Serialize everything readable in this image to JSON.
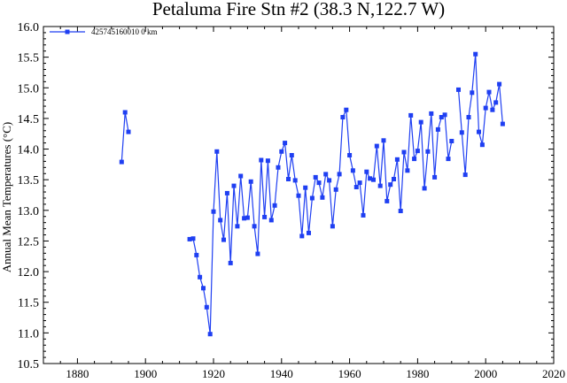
{
  "chart_data": {
    "type": "line",
    "title": "Petaluma Fire Stn #2 (38.3 N,122.7 W)",
    "xlabel": "",
    "ylabel": "Annual Mean Temperatures (°C)",
    "xlim": [
      1870,
      2020
    ],
    "ylim": [
      10.5,
      16.0
    ],
    "x_ticks": [
      "1880",
      "1900",
      "1920",
      "1940",
      "1960",
      "1980",
      "2000",
      "2020"
    ],
    "y_ticks": [
      "10.5",
      "11.0",
      "11.5",
      "12.0",
      "12.5",
      "13.0",
      "13.5",
      "14.0",
      "14.5",
      "15.0",
      "15.5",
      "16.0"
    ],
    "grid": false,
    "legend_position": "top-left",
    "series_color": "#1f3ff2",
    "series": [
      {
        "name": "425745160010  0 km",
        "segments": [
          [
            [
              1893,
              13.79
            ],
            [
              1894,
              14.6
            ],
            [
              1895,
              14.28
            ]
          ],
          [
            [
              1913,
              12.53
            ],
            [
              1914,
              12.54
            ],
            [
              1915,
              12.27
            ],
            [
              1916,
              11.91
            ],
            [
              1917,
              11.73
            ],
            [
              1918,
              11.42
            ],
            [
              1919,
              10.98
            ],
            [
              1920,
              12.98
            ],
            [
              1921,
              13.96
            ],
            [
              1922,
              12.84
            ],
            [
              1923,
              12.52
            ],
            [
              1924,
              13.28
            ],
            [
              1925,
              12.14
            ],
            [
              1926,
              13.4
            ],
            [
              1927,
              12.74
            ],
            [
              1928,
              13.56
            ],
            [
              1929,
              12.87
            ],
            [
              1930,
              12.88
            ],
            [
              1931,
              13.47
            ],
            [
              1932,
              12.74
            ],
            [
              1933,
              12.29
            ],
            [
              1934,
              13.82
            ],
            [
              1935,
              12.89
            ],
            [
              1936,
              13.81
            ],
            [
              1937,
              12.84
            ],
            [
              1938,
              13.08
            ],
            [
              1939,
              13.7
            ],
            [
              1940,
              13.96
            ],
            [
              1941,
              14.1
            ],
            [
              1942,
              13.51
            ],
            [
              1943,
              13.9
            ],
            [
              1944,
              13.49
            ],
            [
              1945,
              13.24
            ],
            [
              1946,
              12.58
            ],
            [
              1947,
              13.37
            ],
            [
              1948,
              12.63
            ],
            [
              1949,
              13.2
            ],
            [
              1950,
              13.54
            ],
            [
              1951,
              13.45
            ],
            [
              1952,
              13.21
            ],
            [
              1953,
              13.59
            ],
            [
              1954,
              13.49
            ],
            [
              1955,
              12.74
            ],
            [
              1956,
              13.34
            ],
            [
              1957,
              13.59
            ],
            [
              1958,
              14.52
            ],
            [
              1959,
              14.64
            ],
            [
              1960,
              13.9
            ],
            [
              1961,
              13.65
            ],
            [
              1962,
              13.38
            ],
            [
              1963,
              13.45
            ],
            [
              1964,
              12.92
            ],
            [
              1965,
              13.63
            ],
            [
              1966,
              13.52
            ],
            [
              1967,
              13.5
            ],
            [
              1968,
              14.05
            ],
            [
              1969,
              13.4
            ],
            [
              1970,
              14.14
            ],
            [
              1971,
              13.15
            ],
            [
              1972,
              13.42
            ],
            [
              1973,
              13.51
            ],
            [
              1974,
              13.83
            ],
            [
              1975,
              12.99
            ],
            [
              1976,
              13.95
            ],
            [
              1977,
              13.65
            ],
            [
              1978,
              14.55
            ],
            [
              1979,
              13.84
            ],
            [
              1980,
              13.97
            ],
            [
              1981,
              14.44
            ],
            [
              1982,
              13.36
            ],
            [
              1983,
              13.96
            ],
            [
              1984,
              14.58
            ],
            [
              1985,
              13.54
            ],
            [
              1986,
              14.32
            ],
            [
              1987,
              14.52
            ],
            [
              1988,
              14.56
            ],
            [
              1989,
              13.84
            ],
            [
              1990,
              14.13
            ]
          ],
          [
            [
              1992,
              14.97
            ],
            [
              1993,
              14.27
            ],
            [
              1994,
              13.58
            ],
            [
              1995,
              14.52
            ],
            [
              1996,
              14.92
            ],
            [
              1997,
              15.55
            ],
            [
              1998,
              14.28
            ],
            [
              1999,
              14.07
            ],
            [
              2000,
              14.67
            ],
            [
              2001,
              14.93
            ],
            [
              2002,
              14.64
            ],
            [
              2003,
              14.76
            ],
            [
              2004,
              15.06
            ],
            [
              2005,
              14.41
            ]
          ]
        ]
      }
    ]
  }
}
